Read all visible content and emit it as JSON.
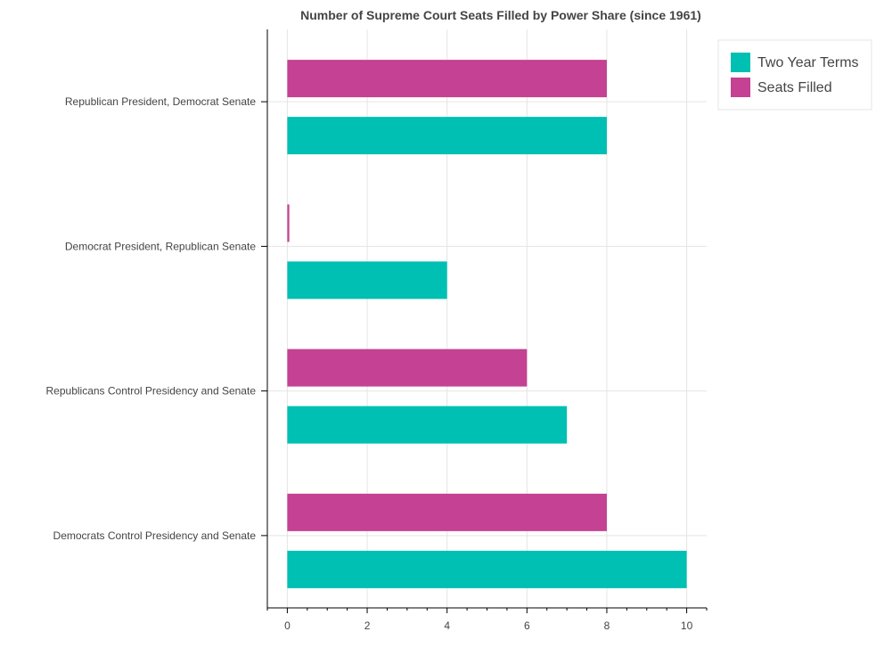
{
  "chart_data": {
    "type": "bar",
    "orientation": "horizontal",
    "title": "Number of Supreme Court Seats Filled by Power Share (since 1961)",
    "xlabel": "",
    "ylabel": "",
    "categories": [
      "Republican President, Democrat Senate",
      "Democrat President, Republican Senate",
      "Republicans Control Presidency and Senate",
      "Democrats Control Presidency and Senate"
    ],
    "series": [
      {
        "name": "Two Year Terms",
        "color": "#00bfb3",
        "values": [
          8,
          4,
          7,
          10
        ]
      },
      {
        "name": "Seats Filled",
        "color": "#c44193",
        "values": [
          8,
          0.05,
          6,
          8
        ]
      }
    ],
    "xlim": [
      -0.5,
      10.5
    ],
    "xticks": [
      0,
      2,
      4,
      6,
      8,
      10
    ],
    "xtick_labels": [
      "0",
      "2",
      "4",
      "6",
      "8",
      "10"
    ],
    "grid": true,
    "legend_position": "top-right"
  }
}
